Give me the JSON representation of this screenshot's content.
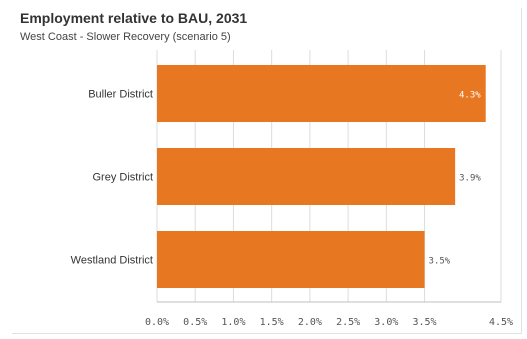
{
  "chart_data": {
    "type": "bar",
    "orientation": "horizontal",
    "title": "Employment relative to BAU, 2031",
    "subtitle": "West Coast - Slower Recovery (scenario 5)",
    "categories": [
      "Buller District",
      "Grey District",
      "Westland District"
    ],
    "values": [
      4.3,
      3.9,
      3.5
    ],
    "data_labels": [
      "4.3%",
      "3.9%",
      "3.5%"
    ],
    "xlim": [
      0,
      4.5
    ],
    "xticks": [
      0,
      0.5,
      1,
      1.5,
      2,
      2.5,
      3,
      3.5,
      4.5
    ],
    "xtick_labels": [
      "0.0%",
      "0.5%",
      "1.0%",
      "1.5%",
      "2.0%",
      "2.5%",
      "3.0%",
      "3.5%",
      "4.5%"
    ],
    "grid": true,
    "legend": "none",
    "bar_color": "#e87722"
  }
}
